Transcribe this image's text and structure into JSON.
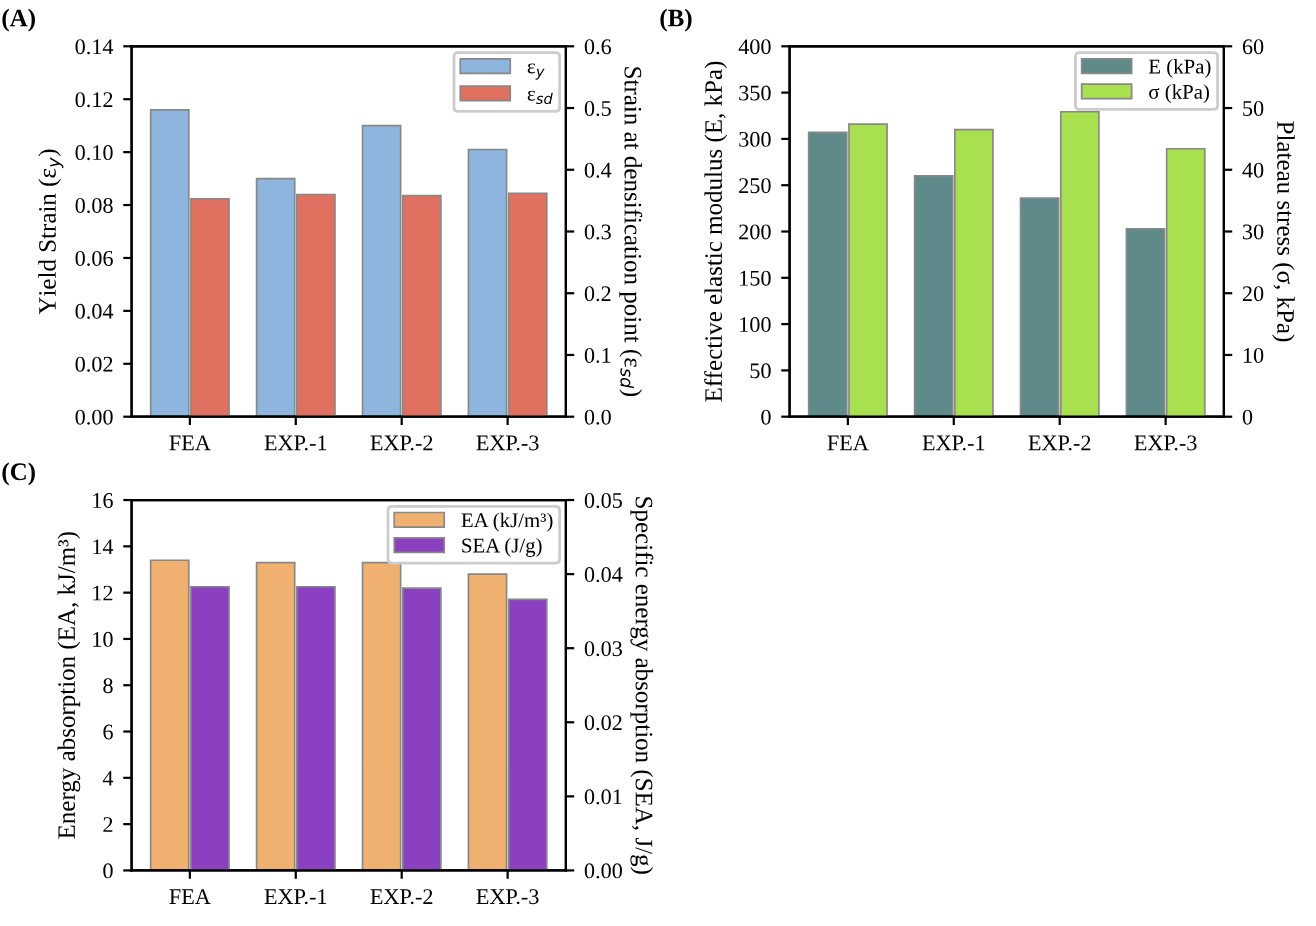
{
  "chart_data": [
    {
      "type": "bar",
      "title": "(A)",
      "categories": [
        "FEA",
        "EXP.-1",
        "EXP.-2",
        "EXP.-3"
      ],
      "ylabel": "Yield Strain (ε$_{y}$)",
      "y2label": "Strain at densification point (ε$_{sd}$)",
      "ylim": [
        0,
        0.14
      ],
      "yticks": [
        {
          "value": 0,
          "label": "0.00"
        },
        0.02,
        0.04,
        0.06,
        0.08,
        {
          "value": 0.1,
          "label": "0.10"
        },
        0.12,
        0.14
      ],
      "y2lim": [
        0,
        0.6
      ],
      "y2ticks": [
        {
          "value": 0,
          "label": "0.0"
        },
        0.1,
        0.2,
        0.3,
        0.4,
        0.5,
        0.6
      ],
      "legend": "top right",
      "grid": false,
      "series": [
        {
          "name": "ε$_{y}$",
          "color": "#8db5dd",
          "values": [
            0.116,
            0.09,
            0.11,
            0.101
          ]
        },
        {
          "name": "ε$_{sd}$",
          "color": "#e07060",
          "axis": "y2",
          "values": [
            0.353,
            0.36,
            0.358,
            0.362
          ]
        }
      ]
    },
    {
      "type": "bar",
      "title": "(B)",
      "categories": [
        "FEA",
        "EXP.-1",
        "EXP.-2",
        "EXP.-3"
      ],
      "ylabel": "Effective elastic modulus (E, kPa)",
      "y2label": "Plateau stress (σ, kPa)",
      "ylim": [
        0,
        400
      ],
      "yticks": [
        0,
        50,
        100,
        150,
        200,
        250,
        300,
        350,
        400
      ],
      "y2lim": [
        0,
        60
      ],
      "y2ticks": [
        0,
        10,
        20,
        30,
        40,
        50,
        60
      ],
      "legend": "top right",
      "grid": false,
      "series": [
        {
          "name": "E (kPa)",
          "color": "#5f8a8a",
          "values": [
            307,
            260,
            236,
            203
          ]
        },
        {
          "name": "σ (kPa)",
          "color": "#a8e050",
          "axis": "y2",
          "values": [
            47.4,
            46.5,
            49.4,
            43.4
          ]
        }
      ]
    },
    {
      "type": "bar",
      "title": "(C)",
      "categories": [
        "FEA",
        "EXP.-1",
        "EXP.-2",
        "EXP.-3"
      ],
      "ylabel": "Energy absorption (EA, kJ/m³)",
      "y2label": "Specific energy absorption (SEA, J/g)",
      "ylim": [
        0,
        16
      ],
      "yticks": [
        0,
        2,
        4,
        6,
        8,
        10,
        12,
        14,
        16
      ],
      "y2lim": [
        0,
        0.05
      ],
      "y2ticks": [
        {
          "value": 0,
          "label": "0.00"
        },
        0.01,
        0.02,
        0.03,
        0.04,
        0.05
      ],
      "legend": "top right",
      "grid": false,
      "series": [
        {
          "name": "EA (kJ/m³)",
          "color": "#f0b070",
          "values": [
            13.4,
            13.3,
            13.3,
            12.8
          ]
        },
        {
          "name": "SEA (J/g)",
          "color": "#8a40c0",
          "axis": "y2",
          "values": [
            0.0383,
            0.0383,
            0.0381,
            0.0366
          ]
        }
      ]
    }
  ]
}
